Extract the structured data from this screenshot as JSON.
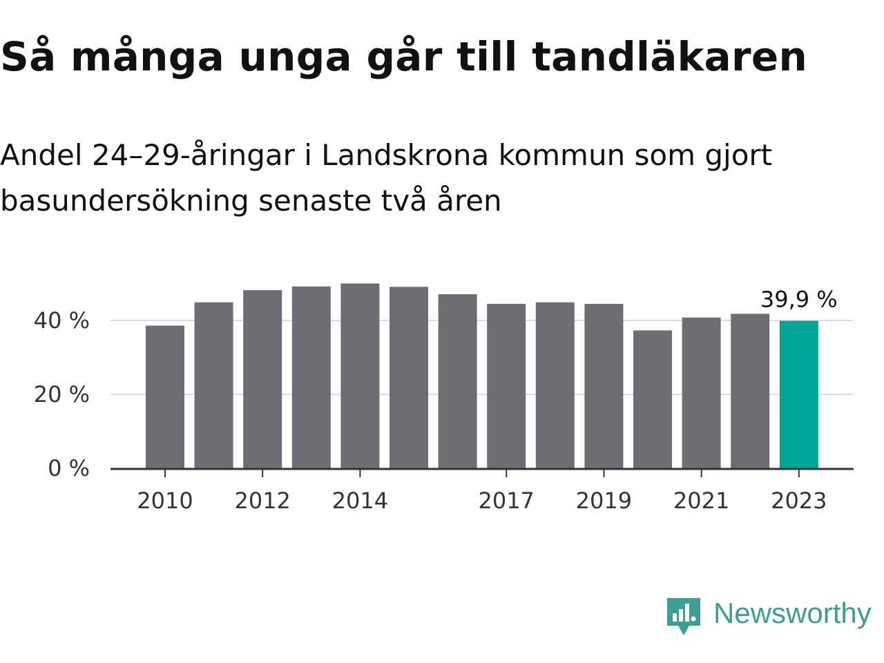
{
  "title": "Så många unga går till tandläkaren",
  "subtitle": "Andel 24–29-åringar i Landskrona kommun som gjort basundersökning senaste två åren",
  "brand": {
    "name": "Newsworthy",
    "color": "#3d9e96"
  },
  "colors": {
    "bar": "#6e6d73",
    "highlight": "#00a59a",
    "grid": "#dddddd",
    "axis": "#333333"
  },
  "chart_data": {
    "type": "bar",
    "categories": [
      "2010",
      "2011",
      "2012",
      "2013",
      "2014",
      "2015",
      "2016",
      "2017",
      "2018",
      "2019",
      "2020",
      "2021",
      "2022",
      "2023"
    ],
    "values": [
      38.6,
      44.9,
      48.2,
      49.2,
      50.0,
      49.1,
      47.1,
      44.5,
      44.9,
      44.5,
      37.3,
      40.8,
      41.8,
      39.9
    ],
    "highlight_index": 13,
    "x_tick_labels": [
      "2010",
      "2012",
      "2014",
      "2017",
      "2019",
      "2021",
      "2023"
    ],
    "y_ticks": [
      0,
      20,
      40
    ],
    "y_tick_labels": [
      "0 %",
      "20 %",
      "40 %"
    ],
    "ylim": [
      0,
      50
    ],
    "grid": true,
    "annotation": "39,9 %",
    "title": "Så många unga går till tandläkaren",
    "xlabel": "",
    "ylabel": ""
  }
}
